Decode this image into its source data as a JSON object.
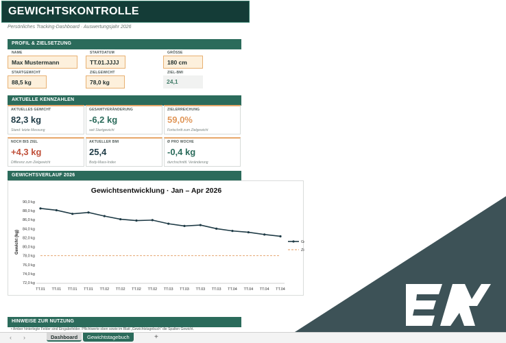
{
  "title": "GEWICHTSKONTROLLE",
  "subtitle": "Persönliches Tracking-Dashboard  ·  Auswertungsjahr 2026",
  "profile": {
    "header": "PROFIL & ZIELSETZUNG",
    "name_label": "NAME",
    "name_value": "Max Mustermann",
    "startdate_label": "STARTDATUM",
    "startdate_value": "TT.01.JJJJ",
    "height_label": "GRÖSSE",
    "height_value": "180 cm",
    "startweight_label": "STARTGEWICHT",
    "startweight_value": "88,5 kg",
    "targetweight_label": "ZIELGEWICHT",
    "targetweight_value": "78,0 kg",
    "targetbmi_label": "ZIEL-BMI",
    "targetbmi_value": "24,1"
  },
  "kpis": {
    "header": "AKTUELLE KENNZAHLEN",
    "items": [
      {
        "label": "AKTUELLES GEWICHT",
        "value": "82,3 kg",
        "sub": "Stand: letzte Messung",
        "color": "#1f3b46"
      },
      {
        "label": "GESAMTVERÄNDERUNG",
        "value": "-6,2 kg",
        "sub": "seit Startgewicht",
        "color": "#2b6b5b"
      },
      {
        "label": "ZIELERREICHUNG",
        "value": "59,0%",
        "sub": "Fortschritt zum Zielgewicht",
        "color": "#e0975a"
      },
      {
        "label": "NOCH BIS ZIEL",
        "value": "+4,3 kg",
        "sub": "Differenz zum Zielgewicht",
        "color": "#c0503a"
      },
      {
        "label": "AKTUELLER BMI",
        "value": "25,4",
        "sub": "Body-Mass-Index",
        "color": "#1f3b46"
      },
      {
        "label": "Ø PRO WOCHE",
        "value": "-0,4 kg",
        "sub": "durchschnittl. Veränderung",
        "color": "#2b6b5b"
      }
    ]
  },
  "chart_section_header": "GEWICHTSVERLAUF 2026",
  "chart_data": {
    "type": "line",
    "title": "Gewichtsentwicklung  ·  Jan – Apr 2026",
    "ylabel": "Gewicht (kg)",
    "xlabel": "",
    "ylim": [
      72,
      90
    ],
    "y_ticks": [
      "90,0 kg",
      "88,0 kg",
      "86,0 kg",
      "84,0 kg",
      "82,0 kg",
      "80,0 kg",
      "78,0 kg",
      "76,0 kg",
      "74,0 kg",
      "72,0 kg"
    ],
    "categories": [
      "TT.01",
      "TT.01",
      "TT.01",
      "TT.01",
      "TT.02",
      "TT.02",
      "TT.02",
      "TT.02",
      "TT.03",
      "TT.03",
      "TT.03",
      "TT.03",
      "TT.04",
      "TT.04",
      "TT.04",
      "TT.04"
    ],
    "series": [
      {
        "name": "Gewicht",
        "values": [
          88.5,
          88.1,
          87.3,
          87.6,
          86.8,
          86.1,
          85.8,
          85.9,
          85.1,
          84.6,
          84.8,
          84.0,
          83.5,
          83.2,
          82.7,
          82.3
        ],
        "color": "#1f3b46"
      },
      {
        "name": "Ziel",
        "values": [
          78,
          78,
          78,
          78,
          78,
          78,
          78,
          78,
          78,
          78,
          78,
          78,
          78,
          78,
          78,
          78
        ],
        "color": "#e0975a",
        "style": "dashed"
      }
    ],
    "legend": "right",
    "grid": false
  },
  "notes": {
    "header": "HINWEISE ZUR NUTZUNG",
    "text": "• Amber hinterlegte Felder sind Eingabefelder. Pflichtwerte oben sowie im Blatt „Gewichtstagebuch“ die Spalten Gewicht."
  },
  "sheet_tabs": [
    {
      "label": "Dashboard"
    },
    {
      "label": "Gewichtstagebuch"
    }
  ],
  "nav": {
    "prev": "‹",
    "next": "›",
    "add": "+"
  },
  "colors": {
    "dark": "#143c37",
    "accent": "#2b6b5b",
    "input": "#fdf0dc",
    "overlay": "#3d5257"
  }
}
